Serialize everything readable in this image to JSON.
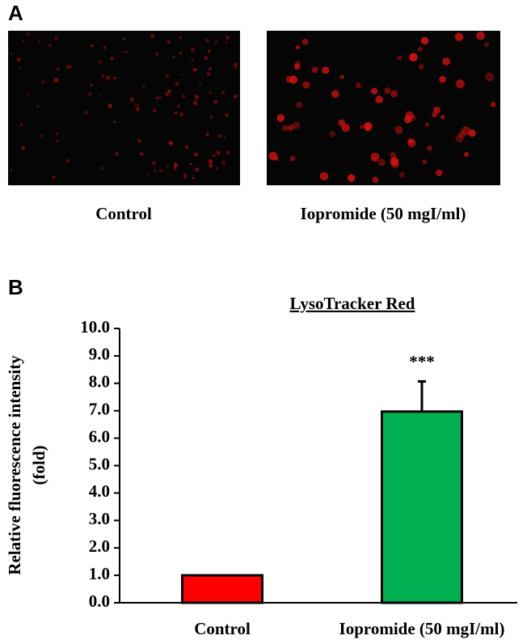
{
  "panel_a": {
    "label": "A",
    "images": [
      {
        "caption": "Control"
      },
      {
        "caption": "Iopromide (50 mgI/ml)"
      }
    ]
  },
  "chart_data": {
    "type": "bar",
    "panel_label": "B",
    "title": "LysoTracker Red",
    "y_label": [
      "Relative fluorescence intensity",
      "(fold)"
    ],
    "categories": [
      "Control",
      "Iopromide (50 mgI/ml)"
    ],
    "values": [
      1.0,
      6.97
    ],
    "errors": [
      null,
      1.1
    ],
    "colors": [
      "#ff0000",
      "#00b050"
    ],
    "annotations": [
      null,
      "***"
    ],
    "ylim": [
      0,
      10
    ],
    "yticks": [
      {
        "value": 0,
        "label": "0.0"
      },
      {
        "value": 1,
        "label": "1.0"
      },
      {
        "value": 2,
        "label": "2.0"
      },
      {
        "value": 3,
        "label": "3.0"
      },
      {
        "value": 4,
        "label": "4.0"
      },
      {
        "value": 5,
        "label": "5.0"
      },
      {
        "value": 6,
        "label": "6.0"
      },
      {
        "value": 7,
        "label": "7.0"
      },
      {
        "value": 8,
        "label": "8.0"
      },
      {
        "value": 9,
        "label": "9.0"
      },
      {
        "value": 10,
        "label": "10.0"
      }
    ]
  }
}
